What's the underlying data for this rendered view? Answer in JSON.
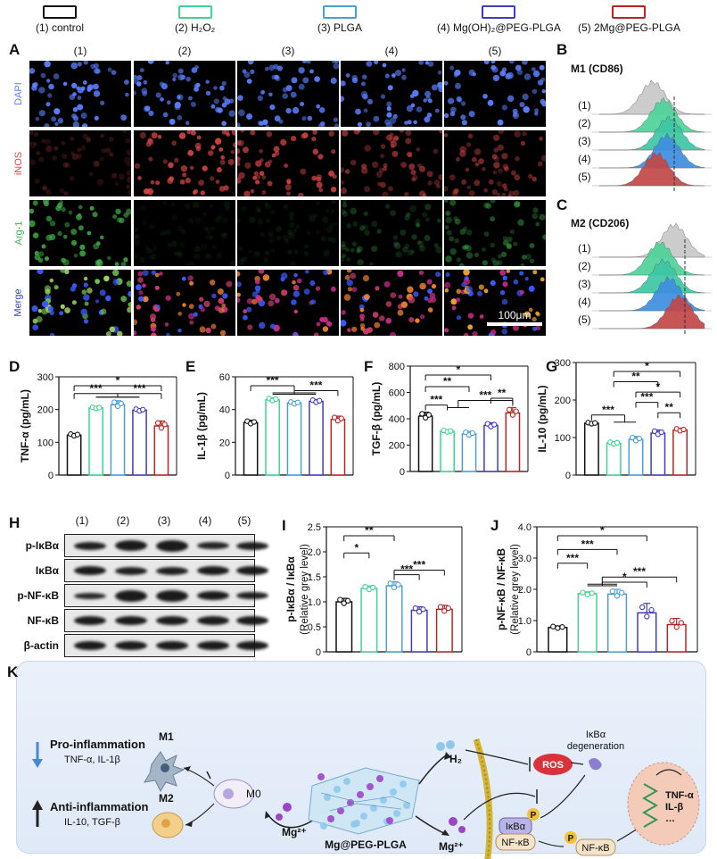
{
  "legend": [
    {
      "label": "(1) control",
      "color": "#111111"
    },
    {
      "label": "(2) H₂O₂",
      "color": "#3fd48f"
    },
    {
      "label": "(3) PLGA",
      "color": "#4a9fd8"
    },
    {
      "label": "(4) Mg(OH)₂@PEG-PLGA",
      "color": "#3e3eb8"
    },
    {
      "label": "(5) 2Mg@PEG-PLGA",
      "color": "#b82525"
    }
  ],
  "panelA": {
    "letter": "A",
    "columns": [
      "(1)",
      "(2)",
      "(3)",
      "(4)",
      "(5)"
    ],
    "rows": [
      "DAPI",
      "iNOS",
      "Arg-1",
      "Merge"
    ],
    "scale_bar": "100μm"
  },
  "panelB": {
    "letter": "B",
    "title": "M1 (CD86)",
    "rows": [
      "(1)",
      "(2)",
      "(3)",
      "(4)",
      "(5)"
    ]
  },
  "panelC": {
    "letter": "C",
    "title": "M2 (CD206)",
    "rows": [
      "(1)",
      "(2)",
      "(3)",
      "(4)",
      "(5)"
    ]
  },
  "chart_data": [
    {
      "panel": "D",
      "type": "bar",
      "ylabel": "TNF-α (pg/mL)",
      "ylim": [
        0,
        300
      ],
      "yticks": [
        "0",
        "100",
        "200",
        "300"
      ],
      "values": [
        122,
        205,
        215,
        198,
        150
      ],
      "errors": [
        5,
        3,
        12,
        5,
        15
      ],
      "significance": [
        {
          "a": 1,
          "b": 5,
          "label": "*"
        },
        {
          "a": 1,
          "b": "2-4",
          "label": "***"
        },
        {
          "a": "2-4",
          "b": 5,
          "label": "***"
        }
      ]
    },
    {
      "panel": "E",
      "type": "bar",
      "ylabel": "IL-1β (pg/mL)",
      "ylim": [
        0,
        60
      ],
      "yticks": [
        "0",
        "20",
        "40",
        "60"
      ],
      "values": [
        32,
        46,
        44,
        45,
        34
      ],
      "errors": [
        1.5,
        1.2,
        1.0,
        1.2,
        2.0
      ],
      "significance": [
        {
          "a": 1,
          "b": "2-4",
          "label": "***"
        },
        {
          "a": "2-4",
          "b": 5,
          "label": "***"
        }
      ]
    },
    {
      "panel": "F",
      "type": "bar",
      "ylabel": "TGF-β (pg/mL)",
      "ylim": [
        0,
        800
      ],
      "yticks": [
        "0",
        "200",
        "400",
        "600",
        "800"
      ],
      "values": [
        420,
        305,
        285,
        350,
        445
      ],
      "errors": [
        30,
        10,
        20,
        20,
        40
      ],
      "significance": [
        {
          "a": 1,
          "b": 4,
          "label": "*"
        },
        {
          "a": 1,
          "b": 3,
          "label": "**"
        },
        {
          "a": 4,
          "b": 5,
          "label": "**"
        },
        {
          "a": 1,
          "b": 2,
          "label": "***"
        },
        {
          "a": "2-3",
          "b": 5,
          "label": "***"
        }
      ]
    },
    {
      "panel": "G",
      "type": "bar",
      "ylabel": "IL-10 (pg/mL)",
      "ylim": [
        0,
        300
      ],
      "yticks": [
        "0",
        "100",
        "200",
        "300"
      ],
      "values": [
        138,
        85,
        95,
        112,
        120
      ],
      "errors": [
        3,
        4,
        8,
        8,
        5
      ],
      "significance": [
        {
          "a": 2,
          "b": 5,
          "label": "*"
        },
        {
          "a": 2,
          "b": 4,
          "label": "**"
        },
        {
          "a": 3,
          "b": 5,
          "label": "*"
        },
        {
          "a": 3,
          "b": 4,
          "label": "***"
        },
        {
          "a": 4,
          "b": 5,
          "label": "**"
        },
        {
          "a": 1,
          "b": "2-3",
          "label": "***"
        }
      ]
    },
    {
      "panel": "I",
      "type": "bar",
      "ylabel": "p-IκBα / IκBα",
      "ylabel2": "(Relative grey level)",
      "ylim": [
        0,
        2.5
      ],
      "yticks": [
        "0",
        "0.5",
        "1.0",
        "1.5",
        "2.0",
        "2.5"
      ],
      "values": [
        1.0,
        1.27,
        1.32,
        0.83,
        0.85
      ],
      "errors": [
        0.07,
        0.05,
        0.08,
        0.07,
        0.08
      ],
      "significance": [
        {
          "a": 1,
          "b": 3,
          "label": "**"
        },
        {
          "a": 1,
          "b": 2,
          "label": "*"
        },
        {
          "a": 3,
          "b": 5,
          "label": "***"
        },
        {
          "a": 3,
          "b": 4,
          "label": "***"
        }
      ]
    },
    {
      "panel": "J",
      "type": "bar",
      "ylabel": "p-NF-κB / NF-κB",
      "ylabel2": "(Relative grey level)",
      "ylim": [
        0,
        4.0
      ],
      "yticks": [
        "0",
        "1.0",
        "2.0",
        "3.0",
        "4.0"
      ],
      "values": [
        0.78,
        1.86,
        1.85,
        1.25,
        0.87
      ],
      "errors": [
        0.05,
        0.06,
        0.15,
        0.3,
        0.2
      ],
      "significance": [
        {
          "a": 1,
          "b": 4,
          "label": "*"
        },
        {
          "a": 1,
          "b": 3,
          "label": "***"
        },
        {
          "a": 1,
          "b": 2,
          "label": "***"
        },
        {
          "a": "2-3",
          "b": 5,
          "label": "***"
        },
        {
          "a": "2-3",
          "b": 4,
          "label": "*"
        }
      ]
    }
  ],
  "panelH": {
    "letter": "H",
    "lanes": [
      "(1)",
      "(2)",
      "(3)",
      "(4)",
      "(5)"
    ],
    "proteins": [
      "p-IκBα",
      "IκBα",
      "p-NF-κB",
      "NF-κB",
      "β-actin"
    ]
  },
  "panelK": {
    "letter": "K",
    "pro_title": "Pro-inflammation",
    "pro_sub": "TNF-α, IL-1β",
    "anti_title": "Anti-inflammation",
    "anti_sub": "IL-10, TGF-β",
    "m1": "M1",
    "m2": "M2",
    "m0": "M0",
    "mg_left": "Mg²⁺",
    "mg_right": "Mg²⁺",
    "scaffold": "Mg@PEG-PLGA",
    "h2": "H₂",
    "ros": "ROS",
    "degeneration": "IκBα\ndegeneration",
    "ikba": "IκBα",
    "nfkb_bound": "NF-κB",
    "nfkb_free": "NF-κB",
    "p": "P",
    "nucleus_genes": [
      "TNF-α",
      "IL-β",
      "…"
    ]
  }
}
